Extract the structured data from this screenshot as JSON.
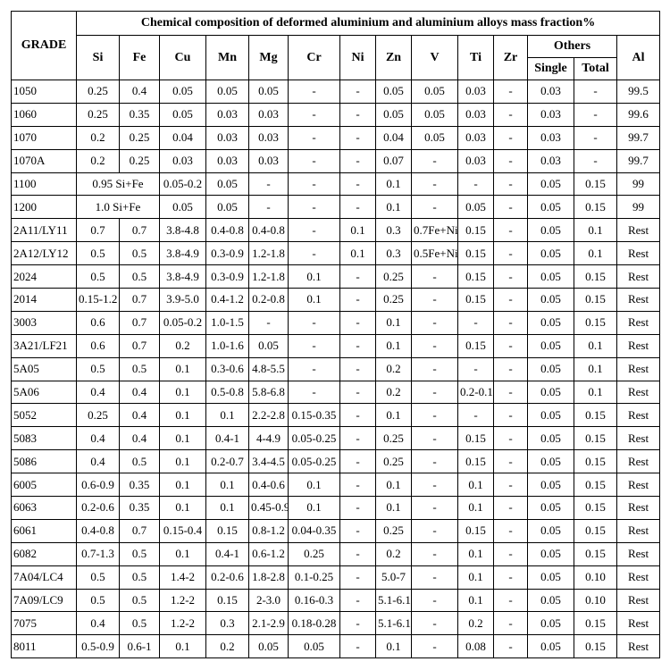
{
  "table": {
    "title": "Chemical composition of deformed aluminium and aluminium alloys      mass fraction%",
    "grade_header": "GRADE",
    "columns": [
      "Si",
      "Fe",
      "Cu",
      "Mn",
      "Mg",
      "Cr",
      "Ni",
      "Zn",
      "V",
      "Ti",
      "Zr"
    ],
    "others": {
      "label": "Others",
      "sub": [
        "Single",
        "Total"
      ]
    },
    "al_header": "Al",
    "rows": [
      [
        "1050",
        "0.25",
        "0.4",
        "0.05",
        "0.05",
        "0.05",
        "-",
        "-",
        "0.05",
        "0.05",
        "0.03",
        "-",
        "0.03",
        "-",
        "99.5"
      ],
      [
        "1060",
        "0.25",
        "0.35",
        "0.05",
        "0.03",
        "0.03",
        "-",
        "-",
        "0.05",
        "0.05",
        "0.03",
        "-",
        "0.03",
        "-",
        "99.6"
      ],
      [
        "1070",
        "0.2",
        "0.25",
        "0.04",
        "0.03",
        "0.03",
        "-",
        "-",
        "0.04",
        "0.05",
        "0.03",
        "-",
        "0.03",
        "-",
        "99.7"
      ],
      [
        "1070A",
        "0.2",
        "0.25",
        "0.03",
        "0.03",
        "0.03",
        "-",
        "-",
        "0.07",
        "-",
        "0.03",
        "-",
        "0.03",
        "-",
        "99.7"
      ],
      [
        "1100",
        "0.95 Si+Fe",
        "0.05-0.2",
        "0.05",
        "-",
        "-",
        "-",
        "0.1",
        "-",
        "-",
        "-",
        "0.05",
        "0.15",
        "99"
      ],
      [
        "1200",
        "1.0 Si+Fe",
        "0.05",
        "0.05",
        "-",
        "-",
        "-",
        "0.1",
        "-",
        "0.05",
        "-",
        "0.05",
        "0.15",
        "99"
      ],
      [
        "2A11/LY11",
        "0.7",
        "0.7",
        "3.8-4.8",
        "0.4-0.8",
        "0.4-0.8",
        "-",
        "0.1",
        "0.3",
        "0.7Fe+Ni",
        "0.15",
        "-",
        "0.05",
        "0.1",
        "Rest"
      ],
      [
        "2A12/LY12",
        "0.5",
        "0.5",
        "3.8-4.9",
        "0.3-0.9",
        "1.2-1.8",
        "-",
        "0.1",
        "0.3",
        "0.5Fe+Ni",
        "0.15",
        "-",
        "0.05",
        "0.1",
        "Rest"
      ],
      [
        "2024",
        "0.5",
        "0.5",
        "3.8-4.9",
        "0.3-0.9",
        "1.2-1.8",
        "0.1",
        "-",
        "0.25",
        "-",
        "0.15",
        "-",
        "0.05",
        "0.15",
        "Rest"
      ],
      [
        "2014",
        "0.15-1.2",
        "0.7",
        "3.9-5.0",
        "0.4-1.2",
        "0.2-0.8",
        "0.1",
        "-",
        "0.25",
        "-",
        "0.15",
        "-",
        "0.05",
        "0.15",
        "Rest"
      ],
      [
        "3003",
        "0.6",
        "0.7",
        "0.05-0.2",
        "1.0-1.5",
        "-",
        "-",
        "-",
        "0.1",
        "-",
        "-",
        "-",
        "0.05",
        "0.15",
        "Rest"
      ],
      [
        "3A21/LF21",
        "0.6",
        "0.7",
        "0.2",
        "1.0-1.6",
        "0.05",
        "-",
        "-",
        "0.1",
        "-",
        "0.15",
        "-",
        "0.05",
        "0.1",
        "Rest"
      ],
      [
        "5A05",
        "0.5",
        "0.5",
        "0.1",
        "0.3-0.6",
        "4.8-5.5",
        "-",
        "-",
        "0.2",
        "-",
        "-",
        "-",
        "0.05",
        "0.1",
        "Rest"
      ],
      [
        "5A06",
        "0.4",
        "0.4",
        "0.1",
        "0.5-0.8",
        "5.8-6.8",
        "-",
        "-",
        "0.2",
        "-",
        "0.2-0.1",
        "-",
        "0.05",
        "0.1",
        "Rest"
      ],
      [
        "5052",
        "0.25",
        "0.4",
        "0.1",
        "0.1",
        "2.2-2.8",
        "0.15-0.35",
        "-",
        "0.1",
        "-",
        "-",
        "-",
        "0.05",
        "0.15",
        "Rest"
      ],
      [
        "5083",
        "0.4",
        "0.4",
        "0.1",
        "0.4-1",
        "4-4.9",
        "0.05-0.25",
        "-",
        "0.25",
        "-",
        "0.15",
        "-",
        "0.05",
        "0.15",
        "Rest"
      ],
      [
        "5086",
        "0.4",
        "0.5",
        "0.1",
        "0.2-0.7",
        "3.4-4.5",
        "0.05-0.25",
        "-",
        "0.25",
        "-",
        "0.15",
        "-",
        "0.05",
        "0.15",
        "Rest"
      ],
      [
        "6005",
        "0.6-0.9",
        "0.35",
        "0.1",
        "0.1",
        "0.4-0.6",
        "0.1",
        "-",
        "0.1",
        "-",
        "0.1",
        "-",
        "0.05",
        "0.15",
        "Rest"
      ],
      [
        "6063",
        "0.2-0.6",
        "0.35",
        "0.1",
        "0.1",
        "0.45-0.9",
        "0.1",
        "-",
        "0.1",
        "-",
        "0.1",
        "-",
        "0.05",
        "0.15",
        "Rest"
      ],
      [
        "6061",
        "0.4-0.8",
        "0.7",
        "0.15-0.4",
        "0.15",
        "0.8-1.2",
        "0.04-0.35",
        "-",
        "0.25",
        "-",
        "0.15",
        "-",
        "0.05",
        "0.15",
        "Rest"
      ],
      [
        "6082",
        "0.7-1.3",
        "0.5",
        "0.1",
        "0.4-1",
        "0.6-1.2",
        "0.25",
        "-",
        "0.2",
        "-",
        "0.1",
        "-",
        "0.05",
        "0.15",
        "Rest"
      ],
      [
        "7A04/LC4",
        "0.5",
        "0.5",
        "1.4-2",
        "0.2-0.6",
        "1.8-2.8",
        "0.1-0.25",
        "-",
        "5.0-7",
        "-",
        "0.1",
        "-",
        "0.05",
        "0.10",
        "Rest"
      ],
      [
        "7A09/LC9",
        "0.5",
        "0.5",
        "1.2-2",
        "0.15",
        "2-3.0",
        "0.16-0.3",
        "-",
        "5.1-6.1",
        "-",
        "0.1",
        "-",
        "0.05",
        "0.10",
        "Rest"
      ],
      [
        "7075",
        "0.4",
        "0.5",
        "1.2-2",
        "0.3",
        "2.1-2.9",
        "0.18-0.28",
        "-",
        "5.1-6.1",
        "-",
        "0.2",
        "-",
        "0.05",
        "0.15",
        "Rest"
      ],
      [
        "8011",
        "0.5-0.9",
        "0.6-1",
        "0.1",
        "0.2",
        "0.05",
        "0.05",
        "-",
        "0.1",
        "-",
        "0.08",
        "-",
        "0.05",
        "0.15",
        "Rest"
      ]
    ]
  }
}
